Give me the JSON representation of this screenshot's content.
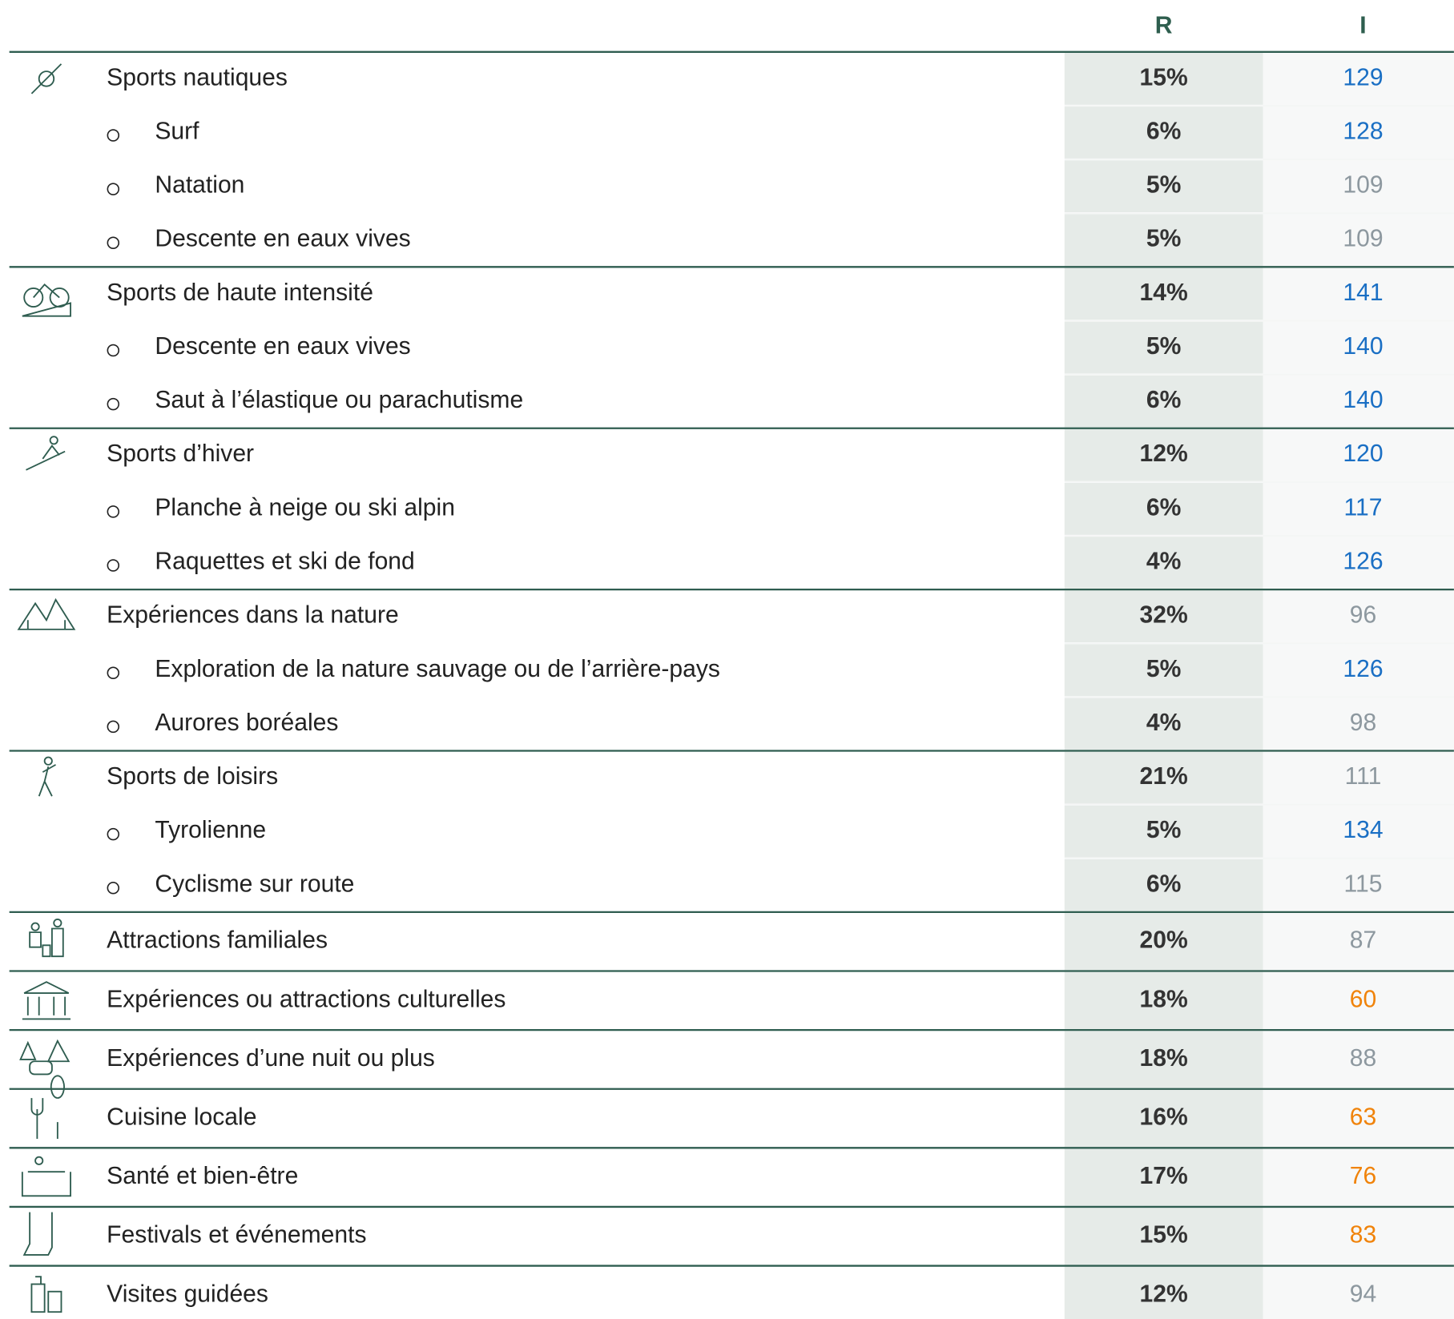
{
  "table": {
    "header": [
      "R",
      "I"
    ],
    "colors": {
      "blue": "#1a6fc4",
      "gray": "#8d989f",
      "orange": "#f0830a"
    },
    "groups": [
      {
        "label": "Sports nautiques",
        "r": "15%",
        "i": 129,
        "color": "blue",
        "items": [
          {
            "label": "Surf",
            "r": "6%",
            "i": 128,
            "color": "blue"
          },
          {
            "label": "Natation",
            "r": "5%",
            "i": 109,
            "color": "gray"
          },
          {
            "label": "Descente en eaux vives",
            "r": "5%",
            "i": 109,
            "color": "gray"
          }
        ]
      },
      {
        "label": "Sports de haute intensité",
        "r": "14%",
        "i": 141,
        "color": "blue",
        "items": [
          {
            "label": "Descente en eaux vives",
            "r": "5%",
            "i": 140,
            "color": "blue"
          },
          {
            "label": "Saut à l’élastique ou parachutisme",
            "r": "6%",
            "i": 140,
            "color": "blue"
          }
        ]
      },
      {
        "label": "Sports d’hiver",
        "r": "12%",
        "i": 120,
        "color": "blue",
        "items": [
          {
            "label": "Planche à neige ou ski alpin",
            "r": "6%",
            "i": 117,
            "color": "blue"
          },
          {
            "label": "Raquettes et ski de fond",
            "r": "4%",
            "i": 126,
            "color": "blue"
          }
        ]
      },
      {
        "label": "Expériences dans la nature",
        "r": "32%",
        "i": 96,
        "color": "gray",
        "items": [
          {
            "label": "Exploration de la nature sauvage ou de l’arrière-pays",
            "r": "5%",
            "i": 126,
            "color": "blue"
          },
          {
            "label": "Aurores boréales",
            "r": "4%",
            "i": 98,
            "color": "gray"
          }
        ]
      },
      {
        "label": "Sports de loisirs",
        "r": "21%",
        "i": 111,
        "color": "gray",
        "items": [
          {
            "label": "Tyrolienne",
            "r": "5%",
            "i": 134,
            "color": "blue"
          },
          {
            "label": "Cyclisme sur route",
            "r": "6%",
            "i": 115,
            "color": "gray"
          }
        ]
      },
      {
        "label": "Attractions familiales",
        "r": "20%",
        "i": 87,
        "color": "gray",
        "items": []
      },
      {
        "label": "Expériences ou attractions culturelles",
        "r": "18%",
        "i": 60,
        "color": "orange",
        "items": []
      },
      {
        "label": "Expériences d’une nuit ou plus",
        "r": "18%",
        "i": 88,
        "color": "gray",
        "items": []
      },
      {
        "label": "Cuisine locale",
        "r": "16%",
        "i": 63,
        "color": "orange",
        "items": []
      },
      {
        "label": "Santé et bien-être",
        "r": "17%",
        "i": 76,
        "color": "orange",
        "items": []
      },
      {
        "label": "Festivals et événements",
        "r": "15%",
        "i": 83,
        "color": "orange",
        "items": []
      },
      {
        "label": "Visites guidées",
        "r": "12%",
        "i": 94,
        "color": "gray",
        "items": []
      }
    ]
  }
}
